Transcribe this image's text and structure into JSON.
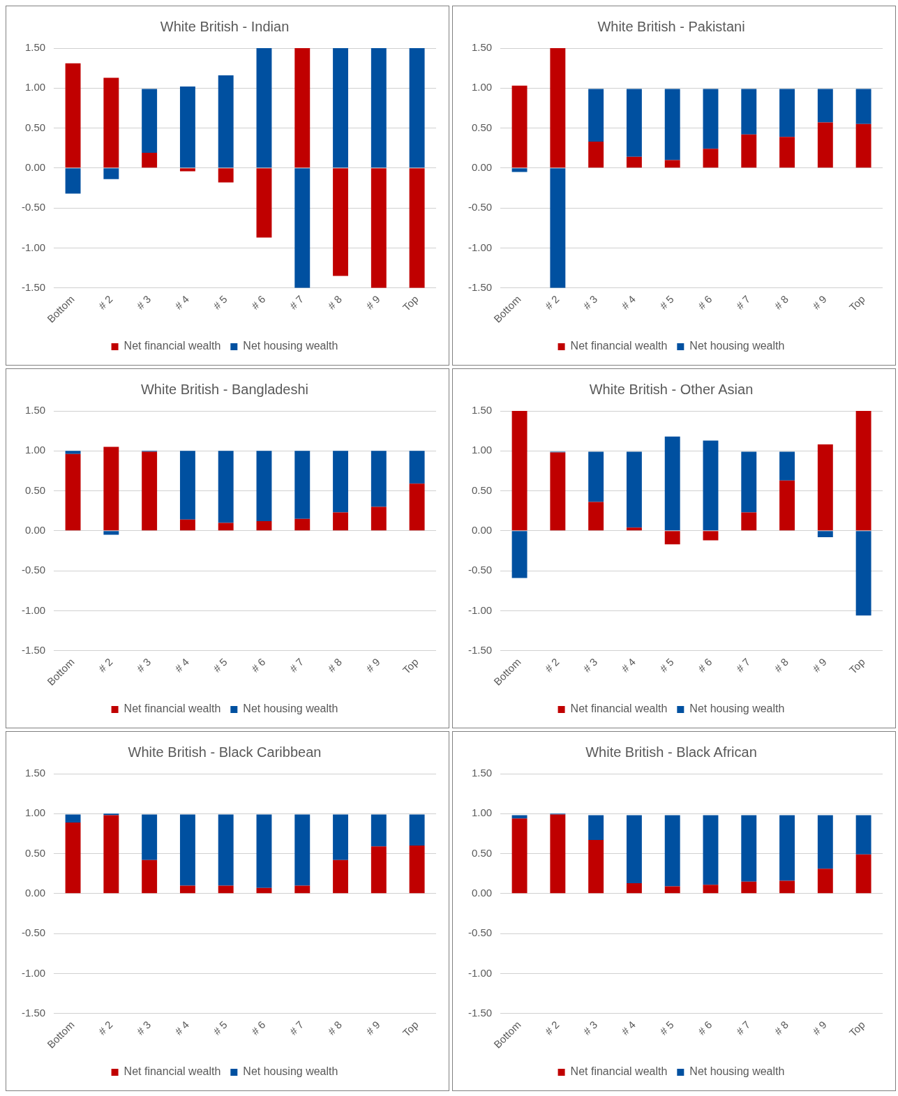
{
  "chart_data": [
    {
      "type": "bar",
      "title": "White British - Indian",
      "categories": [
        "Bottom",
        "# 2",
        "# 3",
        "# 4",
        "# 5",
        "# 6",
        "# 7",
        "# 8",
        "# 9",
        "Top"
      ],
      "stacked": true,
      "grid": "y",
      "legend": "bottom",
      "ylim": [
        -1.5,
        1.5
      ],
      "yticks": [
        {
          "value": -1.5,
          "label": "-1.50"
        },
        {
          "value": -1,
          "label": "-1.00"
        },
        {
          "value": -0.5,
          "label": "-0.50"
        },
        {
          "value": 0,
          "label": "0.00"
        },
        {
          "value": 0.5,
          "label": "0.50"
        },
        {
          "value": 1,
          "label": "1.00"
        },
        {
          "value": 1.5,
          "label": "1.50"
        }
      ],
      "series": [
        {
          "name": "Net financial wealth",
          "color": "#c00000",
          "values": [
            1.31,
            1.13,
            0.19,
            -0.04,
            -0.18,
            -0.87,
            1.5,
            -1.35,
            -1.5,
            -1.5
          ]
        },
        {
          "name": "Net housing wealth",
          "color": "#0050a0",
          "values": [
            -0.32,
            -0.14,
            0.8,
            1.02,
            1.16,
            1.5,
            -1.5,
            1.5,
            1.5,
            1.5
          ]
        }
      ]
    },
    {
      "type": "bar",
      "title": "White British - Pakistani",
      "categories": [
        "Bottom",
        "# 2",
        "# 3",
        "# 4",
        "# 5",
        "# 6",
        "# 7",
        "# 8",
        "# 9",
        "Top"
      ],
      "stacked": true,
      "grid": "y",
      "legend": "bottom",
      "ylim": [
        -1.5,
        1.5
      ],
      "yticks": [
        {
          "value": -1.5,
          "label": "-1.50"
        },
        {
          "value": -1,
          "label": "-1.00"
        },
        {
          "value": -0.5,
          "label": "-0.50"
        },
        {
          "value": 0,
          "label": "0.00"
        },
        {
          "value": 0.5,
          "label": "0.50"
        },
        {
          "value": 1,
          "label": "1.00"
        },
        {
          "value": 1.5,
          "label": "1.50"
        }
      ],
      "series": [
        {
          "name": "Net financial wealth",
          "color": "#c00000",
          "values": [
            1.03,
            1.5,
            0.33,
            0.14,
            0.1,
            0.24,
            0.42,
            0.39,
            0.57,
            0.55
          ]
        },
        {
          "name": "Net housing wealth",
          "color": "#0050a0",
          "values": [
            -0.05,
            -1.5,
            0.66,
            0.85,
            0.89,
            0.75,
            0.57,
            0.6,
            0.42,
            0.44
          ]
        }
      ]
    },
    {
      "type": "bar",
      "title": "White British - Bangladeshi",
      "categories": [
        "Bottom",
        "# 2",
        "# 3",
        "# 4",
        "# 5",
        "# 6",
        "# 7",
        "# 8",
        "# 9",
        "Top"
      ],
      "stacked": true,
      "grid": "y",
      "legend": "bottom",
      "ylim": [
        -1.5,
        1.5
      ],
      "yticks": [
        {
          "value": -1.5,
          "label": "-1.50"
        },
        {
          "value": -1,
          "label": "-1.00"
        },
        {
          "value": -0.5,
          "label": "-0.50"
        },
        {
          "value": 0,
          "label": "0.00"
        },
        {
          "value": 0.5,
          "label": "0.50"
        },
        {
          "value": 1,
          "label": "1.00"
        },
        {
          "value": 1.5,
          "label": "1.50"
        }
      ],
      "series": [
        {
          "name": "Net financial wealth",
          "color": "#c00000",
          "values": [
            0.96,
            1.05,
            0.99,
            0.14,
            0.1,
            0.12,
            0.15,
            0.23,
            0.3,
            0.59
          ]
        },
        {
          "name": "Net housing wealth",
          "color": "#0050a0",
          "values": [
            0.04,
            -0.05,
            0.01,
            0.86,
            0.9,
            0.88,
            0.85,
            0.77,
            0.7,
            0.41
          ]
        }
      ]
    },
    {
      "type": "bar",
      "title": "White British - Other Asian",
      "categories": [
        "Bottom",
        "# 2",
        "# 3",
        "# 4",
        "# 5",
        "# 6",
        "# 7",
        "# 8",
        "# 9",
        "Top"
      ],
      "stacked": true,
      "grid": "y",
      "legend": "bottom",
      "ylim": [
        -1.5,
        1.5
      ],
      "yticks": [
        {
          "value": -1.5,
          "label": "-1.50"
        },
        {
          "value": -1,
          "label": "-1.00"
        },
        {
          "value": -0.5,
          "label": "-0.50"
        },
        {
          "value": 0,
          "label": "0.00"
        },
        {
          "value": 0.5,
          "label": "0.50"
        },
        {
          "value": 1,
          "label": "1.00"
        },
        {
          "value": 1.5,
          "label": "1.50"
        }
      ],
      "series": [
        {
          "name": "Net financial wealth",
          "color": "#c00000",
          "values": [
            1.5,
            0.98,
            0.36,
            0.04,
            -0.17,
            -0.12,
            0.23,
            0.63,
            1.08,
            1.5
          ]
        },
        {
          "name": "Net housing wealth",
          "color": "#0050a0",
          "values": [
            -0.59,
            0.01,
            0.63,
            0.95,
            1.18,
            1.13,
            0.76,
            0.36,
            -0.08,
            -1.06
          ]
        }
      ]
    },
    {
      "type": "bar",
      "title": "White British - Black Caribbean",
      "categories": [
        "Bottom",
        "# 2",
        "# 3",
        "# 4",
        "# 5",
        "# 6",
        "# 7",
        "# 8",
        "# 9",
        "Top"
      ],
      "stacked": true,
      "grid": "y",
      "legend": "bottom",
      "ylim": [
        -1.5,
        1.5
      ],
      "yticks": [
        {
          "value": -1.5,
          "label": "-1.50"
        },
        {
          "value": -1,
          "label": "-1.00"
        },
        {
          "value": -0.5,
          "label": "-0.50"
        },
        {
          "value": 0,
          "label": "0.00"
        },
        {
          "value": 0.5,
          "label": "0.50"
        },
        {
          "value": 1,
          "label": "1.00"
        },
        {
          "value": 1.5,
          "label": "1.50"
        }
      ],
      "series": [
        {
          "name": "Net financial wealth",
          "color": "#c00000",
          "values": [
            0.89,
            0.98,
            0.42,
            0.1,
            0.1,
            0.07,
            0.1,
            0.42,
            0.59,
            0.6
          ]
        },
        {
          "name": "Net housing wealth",
          "color": "#0050a0",
          "values": [
            0.1,
            0.02,
            0.57,
            0.89,
            0.89,
            0.92,
            0.89,
            0.57,
            0.4,
            0.39
          ]
        }
      ]
    },
    {
      "type": "bar",
      "title": "White British - Black African",
      "categories": [
        "Bottom",
        "# 2",
        "# 3",
        "# 4",
        "# 5",
        "# 6",
        "# 7",
        "# 8",
        "# 9",
        "Top"
      ],
      "stacked": true,
      "grid": "y",
      "legend": "bottom",
      "ylim": [
        -1.5,
        1.5
      ],
      "yticks": [
        {
          "value": -1.5,
          "label": "-1.50"
        },
        {
          "value": -1,
          "label": "-1.00"
        },
        {
          "value": -0.5,
          "label": "-0.50"
        },
        {
          "value": 0,
          "label": "0.00"
        },
        {
          "value": 0.5,
          "label": "0.50"
        },
        {
          "value": 1,
          "label": "1.00"
        },
        {
          "value": 1.5,
          "label": "1.50"
        }
      ],
      "series": [
        {
          "name": "Net financial wealth",
          "color": "#c00000",
          "values": [
            0.94,
            0.99,
            0.67,
            0.13,
            0.09,
            0.11,
            0.15,
            0.16,
            0.31,
            0.49
          ]
        },
        {
          "name": "Net housing wealth",
          "color": "#0050a0",
          "values": [
            0.04,
            0.01,
            0.31,
            0.85,
            0.89,
            0.87,
            0.83,
            0.82,
            0.67,
            0.49
          ]
        }
      ]
    }
  ]
}
